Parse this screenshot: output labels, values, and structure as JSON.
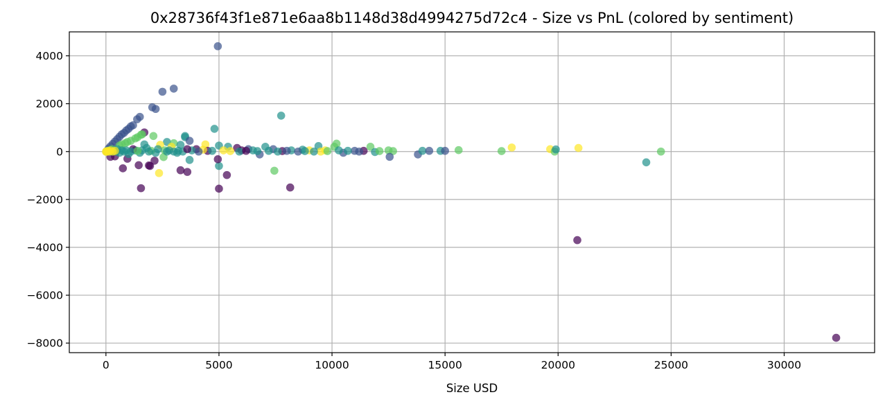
{
  "chart_data": {
    "type": "scatter",
    "title": "0x28736f43f1e871e6aa8b1148d38d4994275d72c4 - Size vs PnL (colored by sentiment)",
    "xlabel": "Size USD",
    "ylabel": "",
    "xlim": [
      -1620,
      34000
    ],
    "ylim": [
      -8400,
      5000
    ],
    "xticks": [
      0,
      5000,
      10000,
      15000,
      20000,
      25000,
      30000
    ],
    "yticks": [
      -8000,
      -6000,
      -4000,
      -2000,
      0,
      2000,
      4000
    ],
    "grid": true,
    "colormap": "viridis",
    "marker_alpha": 0.7,
    "colors": {
      "extreme_fear": "#440154",
      "fear": "#3b528b",
      "neutral": "#21918c",
      "greed": "#5ec962",
      "extreme_greed": "#fde725"
    },
    "points": [
      {
        "x": 4950,
        "y": 4400,
        "c": "fear"
      },
      {
        "x": 2500,
        "y": 2500,
        "c": "fear"
      },
      {
        "x": 3000,
        "y": 2630,
        "c": "fear"
      },
      {
        "x": 2050,
        "y": 1850,
        "c": "fear"
      },
      {
        "x": 2200,
        "y": 1780,
        "c": "fear"
      },
      {
        "x": 7750,
        "y": 1500,
        "c": "neutral"
      },
      {
        "x": 1500,
        "y": 1450,
        "c": "fear"
      },
      {
        "x": 1380,
        "y": 1350,
        "c": "fear"
      },
      {
        "x": 1200,
        "y": 1100,
        "c": "fear"
      },
      {
        "x": 1100,
        "y": 1050,
        "c": "fear"
      },
      {
        "x": 1000,
        "y": 950,
        "c": "fear"
      },
      {
        "x": 900,
        "y": 880,
        "c": "fear"
      },
      {
        "x": 800,
        "y": 780,
        "c": "fear"
      },
      {
        "x": 700,
        "y": 720,
        "c": "fear"
      },
      {
        "x": 600,
        "y": 620,
        "c": "fear"
      },
      {
        "x": 500,
        "y": 520,
        "c": "fear"
      },
      {
        "x": 400,
        "y": 420,
        "c": "fear"
      },
      {
        "x": 300,
        "y": 320,
        "c": "fear"
      },
      {
        "x": 200,
        "y": 220,
        "c": "fear"
      },
      {
        "x": 120,
        "y": 130,
        "c": "fear"
      },
      {
        "x": 1700,
        "y": 800,
        "c": "extreme_fear"
      },
      {
        "x": 1550,
        "y": 700,
        "c": "greed"
      },
      {
        "x": 1400,
        "y": 600,
        "c": "greed"
      },
      {
        "x": 1600,
        "y": 720,
        "c": "greed"
      },
      {
        "x": 1300,
        "y": 550,
        "c": "greed"
      },
      {
        "x": 1100,
        "y": 450,
        "c": "greed"
      },
      {
        "x": 950,
        "y": 400,
        "c": "greed"
      },
      {
        "x": 850,
        "y": 350,
        "c": "greed"
      },
      {
        "x": 700,
        "y": 300,
        "c": "greed"
      },
      {
        "x": 600,
        "y": 250,
        "c": "greed"
      },
      {
        "x": 2100,
        "y": 650,
        "c": "greed"
      },
      {
        "x": 3500,
        "y": 650,
        "c": "neutral"
      },
      {
        "x": 3500,
        "y": 600,
        "c": "neutral"
      },
      {
        "x": 4800,
        "y": 950,
        "c": "neutral"
      },
      {
        "x": 3700,
        "y": 450,
        "c": "fear"
      },
      {
        "x": 2700,
        "y": 400,
        "c": "neutral"
      },
      {
        "x": 3000,
        "y": 350,
        "c": "greed"
      },
      {
        "x": 3300,
        "y": 280,
        "c": "neutral"
      },
      {
        "x": 2400,
        "y": 280,
        "c": "extreme_greed"
      },
      {
        "x": 4400,
        "y": 300,
        "c": "extreme_greed"
      },
      {
        "x": 2900,
        "y": 200,
        "c": "extreme_greed"
      },
      {
        "x": 5000,
        "y": 250,
        "c": "neutral"
      },
      {
        "x": 5400,
        "y": 200,
        "c": "neutral"
      },
      {
        "x": 5800,
        "y": 150,
        "c": "extreme_fear"
      },
      {
        "x": 6300,
        "y": 100,
        "c": "fear"
      },
      {
        "x": 7050,
        "y": 200,
        "c": "neutral"
      },
      {
        "x": 7400,
        "y": 100,
        "c": "fear"
      },
      {
        "x": 8200,
        "y": 50,
        "c": "neutral"
      },
      {
        "x": 8700,
        "y": 80,
        "c": "neutral"
      },
      {
        "x": 9400,
        "y": 230,
        "c": "neutral"
      },
      {
        "x": 10200,
        "y": 330,
        "c": "greed"
      },
      {
        "x": 10100,
        "y": 200,
        "c": "greed"
      },
      {
        "x": 10500,
        "y": -50,
        "c": "fear"
      },
      {
        "x": 11000,
        "y": 30,
        "c": "fear"
      },
      {
        "x": 11400,
        "y": 30,
        "c": "extreme_fear"
      },
      {
        "x": 11700,
        "y": 200,
        "c": "greed"
      },
      {
        "x": 11900,
        "y": -20,
        "c": "neutral"
      },
      {
        "x": 12100,
        "y": 20,
        "c": "greed"
      },
      {
        "x": 12500,
        "y": 50,
        "c": "greed"
      },
      {
        "x": 12700,
        "y": 20,
        "c": "greed"
      },
      {
        "x": 12550,
        "y": -220,
        "c": "fear"
      },
      {
        "x": 13800,
        "y": -120,
        "c": "fear"
      },
      {
        "x": 14000,
        "y": 30,
        "c": "neutral"
      },
      {
        "x": 14300,
        "y": 30,
        "c": "fear"
      },
      {
        "x": 14800,
        "y": 30,
        "c": "neutral"
      },
      {
        "x": 15000,
        "y": 30,
        "c": "fear"
      },
      {
        "x": 15600,
        "y": 60,
        "c": "greed"
      },
      {
        "x": 17500,
        "y": 20,
        "c": "greed"
      },
      {
        "x": 17950,
        "y": 170,
        "c": "extreme_greed"
      },
      {
        "x": 19650,
        "y": 100,
        "c": "extreme_greed"
      },
      {
        "x": 19850,
        "y": 0,
        "c": "greed"
      },
      {
        "x": 19900,
        "y": 90,
        "c": "neutral"
      },
      {
        "x": 20900,
        "y": 150,
        "c": "extreme_greed"
      },
      {
        "x": 24550,
        "y": 0,
        "c": "greed"
      },
      {
        "x": 23900,
        "y": -450,
        "c": "neutral"
      },
      {
        "x": 20850,
        "y": -3700,
        "c": "extreme_fear"
      },
      {
        "x": 32300,
        "y": -7780,
        "c": "extreme_fear"
      },
      {
        "x": 8150,
        "y": -1500,
        "c": "extreme_fear"
      },
      {
        "x": 5000,
        "y": -1550,
        "c": "extreme_fear"
      },
      {
        "x": 5350,
        "y": -980,
        "c": "extreme_fear"
      },
      {
        "x": 7450,
        "y": -800,
        "c": "greed"
      },
      {
        "x": 5000,
        "y": -600,
        "c": "neutral"
      },
      {
        "x": 4950,
        "y": -320,
        "c": "extreme_fear"
      },
      {
        "x": 3300,
        "y": -780,
        "c": "extreme_fear"
      },
      {
        "x": 3600,
        "y": -850,
        "c": "extreme_fear"
      },
      {
        "x": 3700,
        "y": -350,
        "c": "neutral"
      },
      {
        "x": 2350,
        "y": -900,
        "c": "extreme_greed"
      },
      {
        "x": 1550,
        "y": -1530,
        "c": "extreme_fear"
      },
      {
        "x": 1450,
        "y": -570,
        "c": "extreme_fear"
      },
      {
        "x": 1900,
        "y": -580,
        "c": "extreme_fear"
      },
      {
        "x": 1950,
        "y": -600,
        "c": "extreme_fear"
      },
      {
        "x": 2150,
        "y": -380,
        "c": "extreme_fear"
      },
      {
        "x": 750,
        "y": -700,
        "c": "extreme_fear"
      },
      {
        "x": 950,
        "y": -300,
        "c": "extreme_fear"
      },
      {
        "x": 400,
        "y": -200,
        "c": "extreme_fear"
      },
      {
        "x": 200,
        "y": -220,
        "c": "extreme_fear"
      },
      {
        "x": 2550,
        "y": -230,
        "c": "greed"
      },
      {
        "x": 3150,
        "y": -50,
        "c": "neutral"
      },
      {
        "x": 4000,
        "y": 100,
        "c": "extreme_fear"
      },
      {
        "x": 4500,
        "y": 30,
        "c": "extreme_fear"
      },
      {
        "x": 6000,
        "y": 50,
        "c": "extreme_fear"
      },
      {
        "x": 6500,
        "y": 50,
        "c": "neutral"
      },
      {
        "x": 6800,
        "y": -120,
        "c": "fear"
      },
      {
        "x": 7200,
        "y": 30,
        "c": "neutral"
      },
      {
        "x": 7800,
        "y": 20,
        "c": "extreme_fear"
      },
      {
        "x": 8500,
        "y": 0,
        "c": "fear"
      },
      {
        "x": 9000,
        "y": 50,
        "c": "extreme_greed"
      },
      {
        "x": 9500,
        "y": 0,
        "c": "extreme_greed"
      },
      {
        "x": 9700,
        "y": 50,
        "c": "extreme_greed"
      },
      {
        "x": 9800,
        "y": 20,
        "c": "greed"
      },
      {
        "x": 5200,
        "y": 50,
        "c": "extreme_greed"
      },
      {
        "x": 5500,
        "y": 20,
        "c": "extreme_greed"
      },
      {
        "x": 4300,
        "y": 80,
        "c": "extreme_greed"
      },
      {
        "x": 2600,
        "y": 50,
        "c": "greed"
      },
      {
        "x": 3800,
        "y": 50,
        "c": "neutral"
      },
      {
        "x": 3400,
        "y": 0,
        "c": "neutral"
      },
      {
        "x": 3000,
        "y": 0,
        "c": "neutral"
      },
      {
        "x": 2800,
        "y": 50,
        "c": "neutral"
      },
      {
        "x": 2300,
        "y": 100,
        "c": "neutral"
      },
      {
        "x": 2000,
        "y": 30,
        "c": "greed"
      },
      {
        "x": 1800,
        "y": 150,
        "c": "neutral"
      },
      {
        "x": 1700,
        "y": 300,
        "c": "neutral"
      },
      {
        "x": 1600,
        "y": 50,
        "c": "neutral"
      },
      {
        "x": 1500,
        "y": -50,
        "c": "neutral"
      },
      {
        "x": 1300,
        "y": 50,
        "c": "neutral"
      },
      {
        "x": 1200,
        "y": 100,
        "c": "extreme_fear"
      },
      {
        "x": 1000,
        "y": -100,
        "c": "neutral"
      },
      {
        "x": 900,
        "y": 50,
        "c": "neutral"
      },
      {
        "x": 800,
        "y": 0,
        "c": "neutral"
      },
      {
        "x": 700,
        "y": 50,
        "c": "neutral"
      },
      {
        "x": 600,
        "y": -50,
        "c": "neutral"
      },
      {
        "x": 500,
        "y": 100,
        "c": "neutral"
      },
      {
        "x": 450,
        "y": 0,
        "c": "neutral"
      },
      {
        "x": 350,
        "y": 50,
        "c": "neutral"
      },
      {
        "x": 300,
        "y": 0,
        "c": "neutral"
      },
      {
        "x": 250,
        "y": 100,
        "c": "greed"
      },
      {
        "x": 200,
        "y": 0,
        "c": "neutral"
      },
      {
        "x": 150,
        "y": 50,
        "c": "neutral"
      },
      {
        "x": 100,
        "y": 0,
        "c": "neutral"
      },
      {
        "x": 50,
        "y": 30,
        "c": "neutral"
      },
      {
        "x": 20,
        "y": 0,
        "c": "neutral"
      },
      {
        "x": 400,
        "y": 30,
        "c": "extreme_greed"
      },
      {
        "x": 300,
        "y": 0,
        "c": "extreme_greed"
      },
      {
        "x": 200,
        "y": 50,
        "c": "extreme_greed"
      },
      {
        "x": 150,
        "y": 0,
        "c": "extreme_greed"
      },
      {
        "x": 100,
        "y": 30,
        "c": "extreme_greed"
      },
      {
        "x": 50,
        "y": 0,
        "c": "extreme_greed"
      },
      {
        "x": 10,
        "y": 10,
        "c": "extreme_greed"
      },
      {
        "x": 5,
        "y": -10,
        "c": "extreme_greed"
      },
      {
        "x": 1100,
        "y": 0,
        "c": "neutral"
      },
      {
        "x": 1400,
        "y": 30,
        "c": "greed"
      },
      {
        "x": 1900,
        "y": 0,
        "c": "neutral"
      },
      {
        "x": 2200,
        "y": -50,
        "c": "neutral"
      },
      {
        "x": 2700,
        "y": 0,
        "c": "neutral"
      },
      {
        "x": 3200,
        "y": 30,
        "c": "neutral"
      },
      {
        "x": 3600,
        "y": 100,
        "c": "extreme_fear"
      },
      {
        "x": 4100,
        "y": 0,
        "c": "fear"
      },
      {
        "x": 4700,
        "y": 30,
        "c": "neutral"
      },
      {
        "x": 5900,
        "y": 0,
        "c": "neutral"
      },
      {
        "x": 6200,
        "y": 30,
        "c": "extreme_fear"
      },
      {
        "x": 6700,
        "y": 20,
        "c": "neutral"
      },
      {
        "x": 7600,
        "y": 0,
        "c": "neutral"
      },
      {
        "x": 8000,
        "y": 30,
        "c": "fear"
      },
      {
        "x": 8800,
        "y": 20,
        "c": "neutral"
      },
      {
        "x": 9200,
        "y": 0,
        "c": "neutral"
      },
      {
        "x": 10300,
        "y": 50,
        "c": "neutral"
      },
      {
        "x": 10700,
        "y": 30,
        "c": "neutral"
      },
      {
        "x": 11200,
        "y": 0,
        "c": "fear"
      }
    ]
  }
}
